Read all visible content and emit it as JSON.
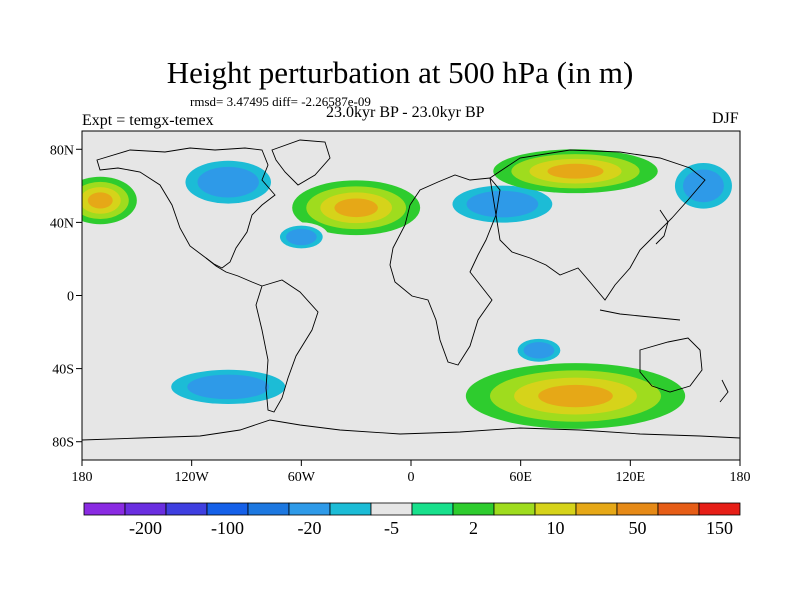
{
  "title": "Height perturbation at 500 hPa (in m)",
  "stats": "rmsd= 3.47495 diff= -2.26587e-09",
  "period": "23.0kyr BP - 23.0kyr BP",
  "experiment": "Expt = temgx-temex",
  "season": "DJF",
  "map": {
    "lon_ticks": [
      "180",
      "120W",
      "60W",
      "0",
      "60E",
      "120E",
      "180"
    ],
    "lat_ticks": [
      "80N",
      "40N",
      "0",
      "40S",
      "80S"
    ],
    "background_color": "#e6e6e6",
    "anomalies": [
      {
        "name": "north-pacific-positive",
        "lon": -170,
        "lat": 52,
        "value": 30,
        "rx": 20,
        "ry": 13
      },
      {
        "name": "north-america-negative",
        "lon": -100,
        "lat": 62,
        "value": -10,
        "rx": 30,
        "ry": 15
      },
      {
        "name": "north-atlantic-west-positive",
        "lon": -30,
        "lat": 48,
        "value": 40,
        "rx": 35,
        "ry": 15
      },
      {
        "name": "atlantic-negative",
        "lon": -60,
        "lat": 32,
        "value": -10,
        "rx": 15,
        "ry": 8
      },
      {
        "name": "eurasia-negative",
        "lon": 50,
        "lat": 50,
        "value": -15,
        "rx": 35,
        "ry": 13
      },
      {
        "name": "siberia-positive",
        "lon": 90,
        "lat": 68,
        "value": 40,
        "rx": 45,
        "ry": 12
      },
      {
        "name": "west-pacific-negative",
        "lon": 160,
        "lat": 60,
        "value": -10,
        "rx": 20,
        "ry": 16
      },
      {
        "name": "south-pacific-negative",
        "lon": -100,
        "lat": -50,
        "value": -15,
        "rx": 40,
        "ry": 12
      },
      {
        "name": "southern-ocean-positive",
        "lon": 90,
        "lat": -55,
        "value": 20,
        "rx": 60,
        "ry": 18
      },
      {
        "name": "indian-ocean-negative",
        "lon": 70,
        "lat": -30,
        "value": -10,
        "rx": 15,
        "ry": 8
      }
    ]
  },
  "colorbar": {
    "labels": [
      "-200",
      "-100",
      "-20",
      "-5",
      "2",
      "10",
      "50",
      "150"
    ],
    "colors": [
      "#8a2be2",
      "#6a2ee0",
      "#3f3fe0",
      "#1560e8",
      "#1d78e0",
      "#2e9ae8",
      "#1cbcd6",
      "#e6e6e6",
      "#18e08c",
      "#2ecc2e",
      "#9fdc1e",
      "#d6d31a",
      "#e6a817",
      "#e68a17",
      "#e65d17",
      "#e61e17"
    ]
  }
}
